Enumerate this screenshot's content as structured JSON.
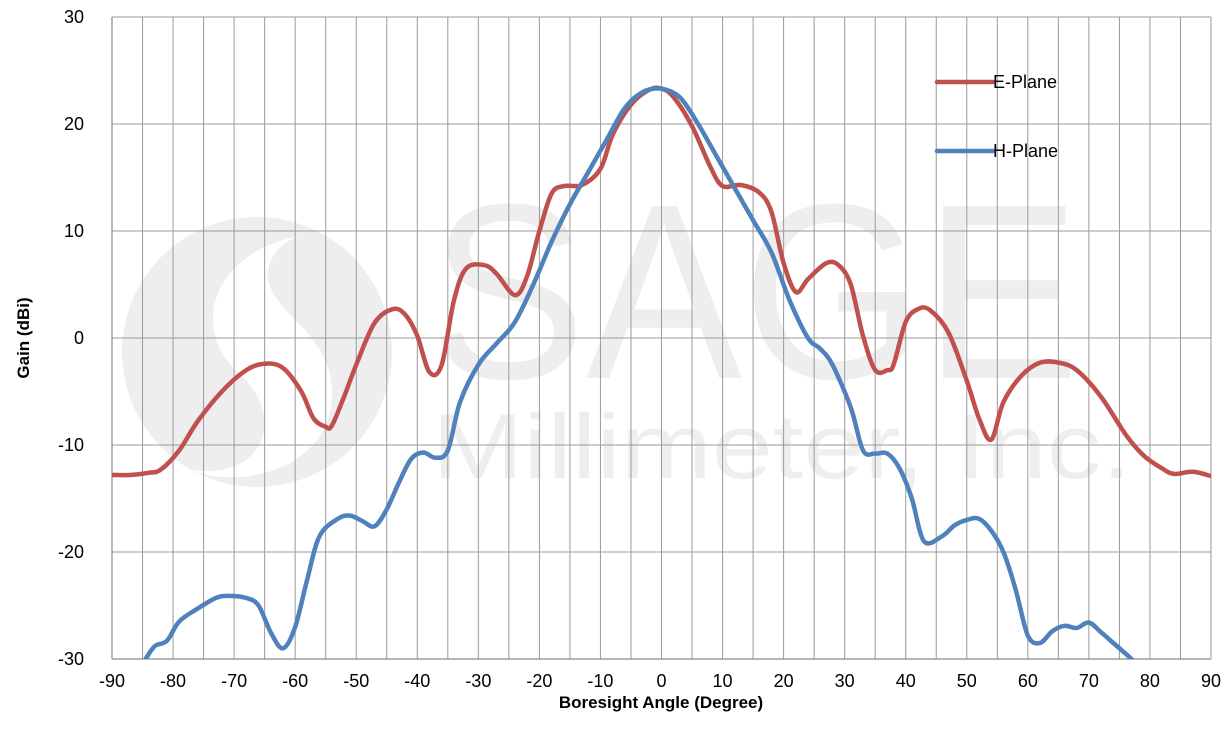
{
  "chart_data": {
    "type": "line",
    "title": "",
    "xlabel": "Boresight Angle (Degree)",
    "ylabel": "Gain (dBi)",
    "xlim": [
      -90,
      90
    ],
    "ylim": [
      -30,
      30
    ],
    "xticks": [
      -90,
      -80,
      -70,
      -60,
      -50,
      -40,
      -30,
      -20,
      -10,
      0,
      10,
      20,
      30,
      40,
      50,
      60,
      70,
      80,
      90
    ],
    "yticks": [
      -30,
      -20,
      -10,
      0,
      10,
      20,
      30
    ],
    "grid": true,
    "legend_position": "top-right",
    "series": [
      {
        "name": "E-Plane",
        "color": "#c0504d",
        "x": [
          -90,
          -87,
          -84,
          -82,
          -79,
          -76,
          -72,
          -68,
          -65,
          -62,
          -59,
          -57,
          -55,
          -54,
          -52,
          -50,
          -47,
          -44,
          -42,
          -40,
          -38,
          -36,
          -34,
          -32,
          -29,
          -27,
          -24,
          -22,
          -20,
          -18,
          -16,
          -13,
          -10,
          -8,
          -5,
          -2,
          0,
          2,
          5,
          8,
          10,
          13,
          16,
          18,
          20,
          22,
          24,
          27,
          29,
          31,
          33,
          35,
          37,
          38,
          40,
          42,
          44,
          47,
          50,
          52,
          54,
          56,
          59,
          62,
          65,
          68,
          72,
          76,
          79,
          82,
          84,
          87,
          90
        ],
        "y": [
          -12.8,
          -12.8,
          -12.6,
          -12.3,
          -10.5,
          -7.8,
          -5,
          -3,
          -2.4,
          -2.8,
          -5,
          -7.5,
          -8.3,
          -8.2,
          -5.5,
          -2.5,
          1.4,
          2.7,
          2.2,
          0.2,
          -3.2,
          -2.5,
          3.5,
          6.5,
          6.8,
          6,
          4,
          5.8,
          10,
          13.5,
          14.2,
          14.3,
          15.8,
          19,
          21.8,
          23.2,
          23.3,
          22.5,
          19.8,
          16,
          14.2,
          14.3,
          13.6,
          11.8,
          7,
          4.3,
          5.5,
          7,
          6.8,
          5,
          0.2,
          -3,
          -3,
          -2.5,
          1.5,
          2.7,
          2.6,
          0.5,
          -4,
          -7.5,
          -9.5,
          -6,
          -3.5,
          -2.3,
          -2.3,
          -3,
          -5.5,
          -9,
          -11,
          -12.2,
          -12.7,
          -12.5,
          -12.9
        ]
      },
      {
        "name": "H-Plane",
        "color": "#4f81bd",
        "x": [
          -84.5,
          -83,
          -81,
          -79,
          -76,
          -73,
          -71,
          -68,
          -66,
          -64,
          -62,
          -60,
          -58,
          -56,
          -53,
          -51,
          -49,
          -47,
          -45,
          -43,
          -41,
          -39,
          -37,
          -35,
          -33,
          -30,
          -27,
          -24,
          -21,
          -18,
          -15,
          -12,
          -9,
          -6,
          -3,
          0,
          3,
          6,
          9,
          12,
          15,
          18,
          21,
          24,
          26,
          28,
          31,
          33,
          35,
          37,
          39,
          41,
          43,
          46,
          48,
          50,
          52,
          54,
          56,
          58,
          60,
          62,
          64,
          66,
          68,
          70,
          72,
          74,
          76,
          78,
          79.5
        ],
        "y": [
          -30,
          -28.8,
          -28.3,
          -26.5,
          -25.3,
          -24.3,
          -24.1,
          -24.3,
          -25,
          -27.5,
          -29,
          -27,
          -22.5,
          -18.5,
          -16.9,
          -16.6,
          -17.1,
          -17.6,
          -16,
          -13.5,
          -11.3,
          -10.7,
          -11.2,
          -10.5,
          -6,
          -2.5,
          -0.5,
          1.5,
          5,
          9,
          12.5,
          15.5,
          18.5,
          21.5,
          23,
          23.3,
          22.5,
          20,
          17,
          14,
          11,
          8,
          3.5,
          0,
          -1,
          -2.5,
          -6.5,
          -10.5,
          -10.8,
          -10.8,
          -12.2,
          -15,
          -19,
          -18.5,
          -17.5,
          -17,
          -16.9,
          -18,
          -20,
          -23.5,
          -27.8,
          -28.5,
          -27.4,
          -26.9,
          -27.1,
          -26.6,
          -27.5,
          -28.5,
          -29.5,
          -30.5,
          -31
        ]
      }
    ]
  },
  "watermark": {
    "brand": "SAGE",
    "subtitle": "Millimeter, Inc."
  }
}
